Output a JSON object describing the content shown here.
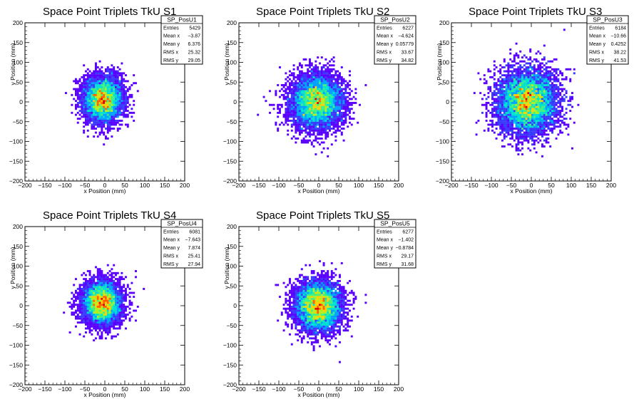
{
  "chart_data": [
    {
      "type": "heatmap",
      "title": "Space Point Triplets TkU S1",
      "xlabel": "x Position (mm)",
      "ylabel": "y Position (mm)",
      "xlim": [
        -200,
        200
      ],
      "ylim": [
        -200,
        200
      ],
      "x_ticks": [
        "−200",
        "−150",
        "−100",
        "−50",
        "0",
        "50",
        "100",
        "150",
        "200"
      ],
      "y_ticks": [
        "−200",
        "−150",
        "−100",
        "−50",
        "0",
        "50",
        "100",
        "150",
        "200"
      ],
      "stats": {
        "name": "SP_PosU1",
        "rows": [
          {
            "label": "Entries",
            "value": "5429"
          },
          {
            "label": "Mean x",
            "value": "−3.87"
          },
          {
            "label": "Mean y",
            "value": "6.376"
          },
          {
            "label": "RMS x",
            "value": "25.32"
          },
          {
            "label": "RMS y",
            "value": "29.05"
          }
        ]
      },
      "entries": 5429,
      "mean_x": -3.87,
      "mean_y": 6.376,
      "rms_x": 25.32,
      "rms_y": 29.05
    },
    {
      "type": "heatmap",
      "title": "Space Point Triplets TkU S2",
      "xlabel": "x Position (mm)",
      "ylabel": "y Position (mm)",
      "xlim": [
        -200,
        200
      ],
      "ylim": [
        -200,
        200
      ],
      "x_ticks": [
        "−200",
        "−150",
        "−100",
        "−50",
        "0",
        "50",
        "100",
        "150",
        "200"
      ],
      "y_ticks": [
        "−200",
        "−150",
        "−100",
        "−50",
        "0",
        "50",
        "100",
        "150",
        "200"
      ],
      "stats": {
        "name": "SP_PosU2",
        "rows": [
          {
            "label": "Entries",
            "value": "6227"
          },
          {
            "label": "Mean x",
            "value": "−4.624"
          },
          {
            "label": "Mean y",
            "value": "0.05779"
          },
          {
            "label": "RMS x",
            "value": "33.67"
          },
          {
            "label": "RMS y",
            "value": "34.82"
          }
        ]
      },
      "entries": 6227,
      "mean_x": -4.624,
      "mean_y": 0.05779,
      "rms_x": 33.67,
      "rms_y": 34.82
    },
    {
      "type": "heatmap",
      "title": "Space Point Triplets TkU S3",
      "xlabel": "x Position (mm)",
      "ylabel": "y Position (mm)",
      "xlim": [
        -200,
        200
      ],
      "ylim": [
        -200,
        200
      ],
      "x_ticks": [
        "−200",
        "−150",
        "−100",
        "−50",
        "0",
        "50",
        "100",
        "150",
        "200"
      ],
      "y_ticks": [
        "−200",
        "−150",
        "−100",
        "−50",
        "0",
        "50",
        "100",
        "150",
        "200"
      ],
      "stats": {
        "name": "SP_PosU3",
        "rows": [
          {
            "label": "Entries",
            "value": "6184"
          },
          {
            "label": "Mean x",
            "value": "−10.66"
          },
          {
            "label": "Mean y",
            "value": "0.4252"
          },
          {
            "label": "RMS x",
            "value": "38.22"
          },
          {
            "label": "RMS y",
            "value": "41.53"
          }
        ]
      },
      "entries": 6184,
      "mean_x": -10.66,
      "mean_y": 0.4252,
      "rms_x": 38.22,
      "rms_y": 41.53
    },
    {
      "type": "heatmap",
      "title": "Space Point Triplets TkU S4",
      "xlabel": "x Position (mm)",
      "ylabel": "y Position (mm)",
      "xlim": [
        -200,
        200
      ],
      "ylim": [
        -200,
        200
      ],
      "x_ticks": [
        "−200",
        "−150",
        "−100",
        "−50",
        "0",
        "50",
        "100",
        "150",
        "200"
      ],
      "y_ticks": [
        "−200",
        "−150",
        "−100",
        "−50",
        "0",
        "50",
        "100",
        "150",
        "200"
      ],
      "stats": {
        "name": "SP_PosU4",
        "rows": [
          {
            "label": "Entries",
            "value": "6081"
          },
          {
            "label": "Mean x",
            "value": "−7.643"
          },
          {
            "label": "Mean y",
            "value": "7.874"
          },
          {
            "label": "RMS x",
            "value": "25.41"
          },
          {
            "label": "RMS y",
            "value": "27.94"
          }
        ]
      },
      "entries": 6081,
      "mean_x": -7.643,
      "mean_y": 7.874,
      "rms_x": 25.41,
      "rms_y": 27.94
    },
    {
      "type": "heatmap",
      "title": "Space Point Triplets TkU S5",
      "xlabel": "x Position (mm)",
      "ylabel": "y Position (mm)",
      "xlim": [
        -200,
        200
      ],
      "ylim": [
        -200,
        200
      ],
      "x_ticks": [
        "−200",
        "−150",
        "−100",
        "−50",
        "0",
        "50",
        "100",
        "150",
        "200"
      ],
      "y_ticks": [
        "−200",
        "−150",
        "−100",
        "−50",
        "0",
        "50",
        "100",
        "150",
        "200"
      ],
      "stats": {
        "name": "SP_PosU5",
        "rows": [
          {
            "label": "Entries",
            "value": "6277"
          },
          {
            "label": "Mean x",
            "value": "−1.402"
          },
          {
            "label": "Mean y",
            "value": "−0.8784"
          },
          {
            "label": "RMS x",
            "value": "29.17"
          },
          {
            "label": "RMS y",
            "value": "31.68"
          }
        ]
      },
      "entries": 6277,
      "mean_x": -1.402,
      "mean_y": -0.8784,
      "rms_x": 29.17,
      "rms_y": 31.68
    }
  ],
  "colors": {
    "palette": [
      "#5a00ff",
      "#3a3aff",
      "#00a0ff",
      "#00e0d0",
      "#40f080",
      "#b0f020",
      "#ffd000",
      "#ff6000",
      "#e00000"
    ]
  }
}
